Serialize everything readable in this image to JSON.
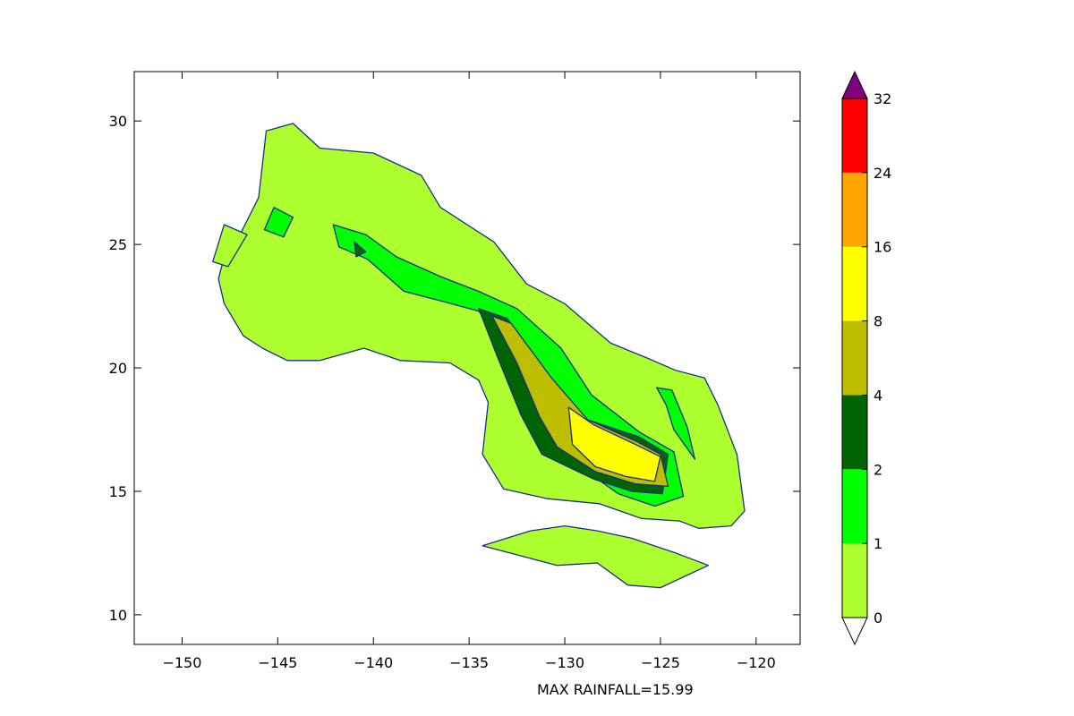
{
  "chart_data": {
    "type": "filled-contour map",
    "xlim": [
      -152.5,
      -117.7
    ],
    "ylim": [
      8.8,
      32.0
    ],
    "x_ticks": [
      -150,
      -145,
      -140,
      -135,
      -130,
      -125,
      -120
    ],
    "x_tick_labels": [
      "−150",
      "−145",
      "−140",
      "−135",
      "−130",
      "−125",
      "−120"
    ],
    "y_ticks": [
      10,
      15,
      20,
      25,
      30
    ],
    "y_tick_labels": [
      "10",
      "15",
      "20",
      "25",
      "30"
    ],
    "grid": false,
    "contour_line_color": "#1c2c8c",
    "levels": [
      0,
      1,
      2,
      4,
      8,
      16,
      24,
      32
    ],
    "level_labels": [
      "0",
      "1",
      "2",
      "4",
      "8",
      "16",
      "24",
      "32"
    ],
    "level_colors": [
      "#adff2f",
      "#00ff00",
      "#006400",
      "#bdbe00",
      "#ffff00",
      "#ffa500",
      "#ff0000"
    ],
    "over_color": "#800080",
    "under_color": "#ffffff",
    "colorbar_extend": "both",
    "regions": [
      {
        "level_index": 0,
        "points": [
          [
            -147.8,
            24.5
          ],
          [
            -147.1,
            25.2
          ],
          [
            -146,
            26.9
          ],
          [
            -145.6,
            29.6
          ],
          [
            -144.2,
            29.9
          ],
          [
            -142.8,
            28.9
          ],
          [
            -140,
            28.7
          ],
          [
            -137.5,
            27.8
          ],
          [
            -136.5,
            26.5
          ],
          [
            -135.3,
            25.9
          ],
          [
            -133.7,
            25.1
          ],
          [
            -132,
            23.4
          ],
          [
            -130,
            22.6
          ],
          [
            -127.6,
            21
          ],
          [
            -125.7,
            20.4
          ],
          [
            -124.2,
            19.9
          ],
          [
            -122.7,
            19.6
          ],
          [
            -122,
            18.5
          ],
          [
            -121,
            16.5
          ],
          [
            -120.6,
            14.2
          ],
          [
            -121.3,
            13.6
          ],
          [
            -123,
            13.5
          ],
          [
            -124,
            13.8
          ],
          [
            -126,
            13.9
          ],
          [
            -128.2,
            14.5
          ],
          [
            -130.9,
            14.7
          ],
          [
            -133.2,
            15.1
          ],
          [
            -134.3,
            16.5
          ],
          [
            -134,
            18.6
          ],
          [
            -134.5,
            19.5
          ],
          [
            -136,
            20.2
          ],
          [
            -138.6,
            20.3
          ],
          [
            -140.5,
            20.8
          ],
          [
            -142.8,
            20.3
          ],
          [
            -144.5,
            20.3
          ],
          [
            -145.8,
            20.8
          ],
          [
            -146.8,
            21.3
          ],
          [
            -147.8,
            22.6
          ],
          [
            -148.1,
            23.6
          ]
        ]
      },
      {
        "level_index": 0,
        "points": [
          [
            -134.3,
            12.8
          ],
          [
            -131.8,
            13.4
          ],
          [
            -130,
            13.6
          ],
          [
            -128.3,
            13.4
          ],
          [
            -126.5,
            13.1
          ],
          [
            -124.2,
            12.5
          ],
          [
            -122.5,
            12
          ],
          [
            -125,
            11.1
          ],
          [
            -126.7,
            11.2
          ],
          [
            -128.3,
            12.1
          ],
          [
            -130.4,
            12
          ]
        ]
      },
      {
        "level_index": 0,
        "points": [
          [
            -148.4,
            24.3
          ],
          [
            -147.8,
            25.8
          ],
          [
            -146.6,
            25.4
          ],
          [
            -147.6,
            24.1
          ]
        ]
      },
      {
        "level_index": 1,
        "points": [
          [
            -142.1,
            25.8
          ],
          [
            -140.4,
            25.4
          ],
          [
            -138.8,
            24.5
          ],
          [
            -136.5,
            23.7
          ],
          [
            -134.5,
            23.1
          ],
          [
            -132.5,
            22.4
          ],
          [
            -130.2,
            20.8
          ],
          [
            -128.6,
            18.9
          ],
          [
            -126.1,
            17.4
          ],
          [
            -124.3,
            16.6
          ],
          [
            -123.8,
            14.8
          ],
          [
            -125.3,
            14.4
          ],
          [
            -127.2,
            14.9
          ],
          [
            -129.4,
            16.1
          ],
          [
            -130.5,
            16.8
          ],
          [
            -131.7,
            18.5
          ],
          [
            -133.2,
            21
          ],
          [
            -134.5,
            22.3
          ],
          [
            -136.4,
            22.7
          ],
          [
            -138.4,
            23.1
          ],
          [
            -140.3,
            24.4
          ],
          [
            -141.8,
            24.9
          ]
        ]
      },
      {
        "level_index": 1,
        "points": [
          [
            -125.2,
            19.2
          ],
          [
            -124.4,
            19.1
          ],
          [
            -123.6,
            17.6
          ],
          [
            -123.2,
            16.3
          ],
          [
            -124.3,
            17.5
          ],
          [
            -124.7,
            18.5
          ]
        ]
      },
      {
        "level_index": 1,
        "points": [
          [
            -145.2,
            26.5
          ],
          [
            -144.2,
            26.1
          ],
          [
            -144.7,
            25.3
          ],
          [
            -145.7,
            25.6
          ]
        ]
      },
      {
        "level_index": 2,
        "points": [
          [
            -134.5,
            22.4
          ],
          [
            -133,
            22
          ],
          [
            -131.1,
            19.8
          ],
          [
            -129.2,
            18
          ],
          [
            -126.1,
            17.2
          ],
          [
            -124.6,
            16.5
          ],
          [
            -124.9,
            14.9
          ],
          [
            -126.5,
            15
          ],
          [
            -128.5,
            15.5
          ],
          [
            -131.2,
            16.5
          ],
          [
            -132.3,
            18.1
          ],
          [
            -133.6,
            20.6
          ]
        ]
      },
      {
        "level_index": 2,
        "points": [
          [
            -141,
            25.1
          ],
          [
            -140.4,
            24.7
          ],
          [
            -140.9,
            24.5
          ]
        ]
      },
      {
        "level_index": 3,
        "points": [
          [
            -133.8,
            22.1
          ],
          [
            -132.8,
            21.8
          ],
          [
            -130.7,
            19.6
          ],
          [
            -128.8,
            17.9
          ],
          [
            -126.2,
            17
          ],
          [
            -125,
            16.5
          ],
          [
            -124.6,
            15.2
          ],
          [
            -126.3,
            15.3
          ],
          [
            -128.4,
            15.8
          ],
          [
            -130.4,
            16.8
          ],
          [
            -131.3,
            18
          ],
          [
            -132.5,
            20.2
          ]
        ]
      },
      {
        "level_index": 4,
        "points": [
          [
            -129.8,
            18.4
          ],
          [
            -128.5,
            17.7
          ],
          [
            -126.3,
            16.9
          ],
          [
            -125,
            16.4
          ],
          [
            -125.3,
            15.4
          ],
          [
            -126.8,
            15.6
          ],
          [
            -128.4,
            16
          ],
          [
            -129.6,
            16.9
          ]
        ]
      }
    ]
  },
  "footer": {
    "text": "MAX RAINFALL=15.99"
  }
}
